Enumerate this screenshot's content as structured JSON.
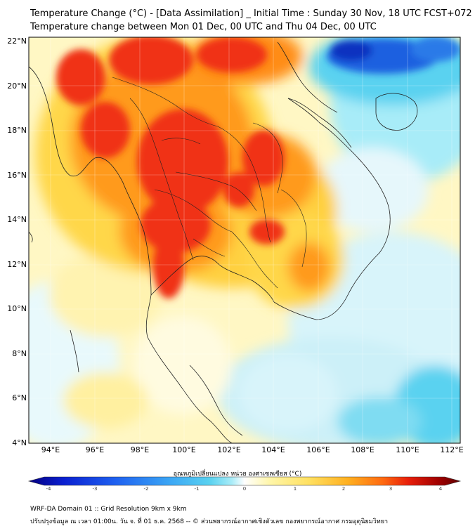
{
  "header": {
    "title_line1": "Temperature Change (°C) - [Data Assimilation] _ Initial Time : Sunday 30 Nov, 18 UTC FCST+072",
    "title_line2": "Temperature change between Mon 01 Dec, 00 UTC and Thu 04 Dec, 00 UTC"
  },
  "map": {
    "lat_labels": [
      "22°N",
      "20°N",
      "18°N",
      "16°N",
      "14°N",
      "12°N",
      "10°N",
      "8°N",
      "6°N",
      "4°N"
    ],
    "lon_labels": [
      "94°E",
      "96°E",
      "98°E",
      "100°E",
      "102°E",
      "104°E",
      "106°E",
      "108°E",
      "110°E",
      "112°E"
    ],
    "palette": {
      "ocean_light": "#e6f7fb",
      "cyan": "#5ad2f0",
      "blue": "#1e60e0",
      "yellow_light": "#fff5b0",
      "yellow": "#ffd74a",
      "orange": "#ff9a1e",
      "red": "#f03214",
      "border": "#202020"
    }
  },
  "colorbar": {
    "title": "อุณหภูมิเปลี่ยนแปลง หน่วย องศาเซลเซียส (°C)",
    "ticks": [
      "-4",
      "-3",
      "-2",
      "-1",
      "0",
      "1",
      "2",
      "3",
      "4"
    ],
    "colors": [
      "#050080",
      "#0a1fd0",
      "#1e60f0",
      "#3ca8f5",
      "#5ad2f0",
      "#a8ecf8",
      "#ffffff",
      "#fff6a8",
      "#ffe060",
      "#ffb020",
      "#ff6a10",
      "#e81e0a",
      "#a00000",
      "#600000"
    ]
  },
  "footer": {
    "line1": "WRF-DA Domain 01 :: Grid Resolution 9km x 9km",
    "line2": "ปรับปรุงข้อมูล ณ เวลา 01:00น. วัน จ. ที่ 01 ธ.ค. 2568 -- © ส่วนพยากรณ์อากาศเชิงตัวเลข กองพยากรณ์อากาศ กรมอุตุนิยมวิทยา"
  }
}
